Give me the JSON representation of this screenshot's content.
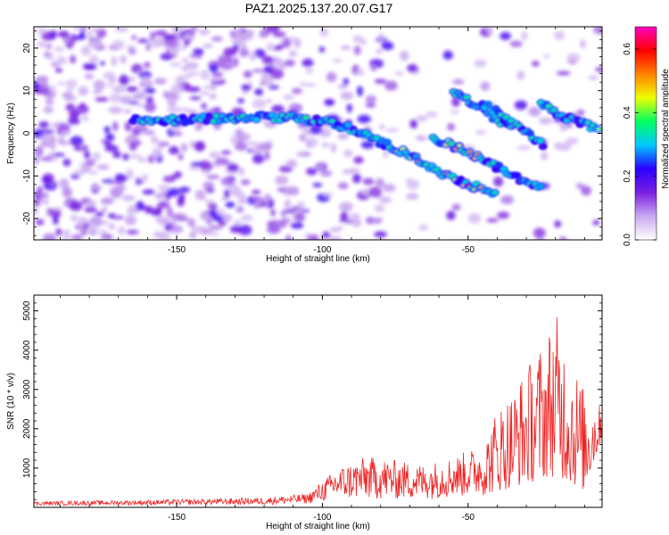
{
  "title": "PAZ1.2025.137.20.07.G17",
  "chart_data": [
    {
      "type": "heatmap",
      "xlabel": "Height of straight line (km)",
      "ylabel": "Frequency (Hz)",
      "xlim": [
        -199,
        -4
      ],
      "ylim": [
        -25,
        25
      ],
      "xticks": [
        -150,
        -100,
        -50
      ],
      "yticks": [
        -20,
        -10,
        0,
        10,
        20
      ],
      "colorbar": {
        "label": "Normalized spectral amplitude",
        "range": [
          0,
          0.67
        ],
        "ticks": [
          "0.0",
          "0.2",
          "0.4",
          "0.6"
        ],
        "tick_values": [
          0.0,
          0.2,
          0.4,
          0.6
        ],
        "colors": [
          "#ffffff",
          "#c9a8f0",
          "#7a1fe0",
          "#2a00ff",
          "#00c8ff",
          "#00ff60",
          "#f0ff00",
          "#ff8000",
          "#ff0000",
          "#ff00c0"
        ]
      },
      "features": [
        {
          "desc": "main drifting line",
          "x": [
            -165,
            -150,
            -135,
            -120,
            -100,
            -90,
            -80,
            -70,
            -60,
            -50,
            -40
          ],
          "y": [
            3,
            3,
            3.5,
            4,
            3,
            1,
            -2,
            -5,
            -9,
            -12,
            -14
          ]
        },
        {
          "desc": "secondary line",
          "x": [
            -62,
            -55,
            -48,
            -40,
            -32,
            -25
          ],
          "y": [
            -1,
            -3,
            -5,
            -8,
            -11,
            -13
          ]
        },
        {
          "desc": "upper line 1",
          "x": [
            -55,
            -48,
            -42,
            -35
          ],
          "y": [
            10,
            7,
            4,
            1
          ]
        },
        {
          "desc": "upper line 2",
          "x": [
            -45,
            -38,
            -30,
            -24
          ],
          "y": [
            7,
            4,
            0,
            -3
          ]
        },
        {
          "desc": "right end feature",
          "x": [
            -25,
            -18,
            -10,
            -5
          ],
          "y": [
            7,
            4,
            2,
            1
          ]
        }
      ]
    },
    {
      "type": "line",
      "xlabel": "Height of straight line (km)",
      "ylabel": "SNR (10 * v/v)",
      "xlim": [
        -199,
        -4
      ],
      "ylim": [
        0,
        5400
      ],
      "xticks": [
        -150,
        -100,
        -50
      ],
      "yticks": [
        1000,
        2000,
        3000,
        4000,
        5000
      ],
      "color": "#ee2222",
      "envelope": {
        "x": [
          -199,
          -150,
          -120,
          -105,
          -95,
          -85,
          -75,
          -65,
          -55,
          -45,
          -40,
          -35,
          -30,
          -25,
          -20,
          -15,
          -10,
          -5,
          -4
        ],
        "lo": [
          50,
          60,
          70,
          100,
          200,
          200,
          200,
          200,
          250,
          300,
          400,
          500,
          600,
          700,
          800,
          600,
          400,
          1500,
          1800
        ],
        "hi": [
          150,
          200,
          250,
          350,
          1000,
          1300,
          1200,
          1100,
          1300,
          1600,
          2600,
          3000,
          3600,
          4200,
          5000,
          4000,
          3000,
          2600,
          2800
        ]
      }
    }
  ]
}
